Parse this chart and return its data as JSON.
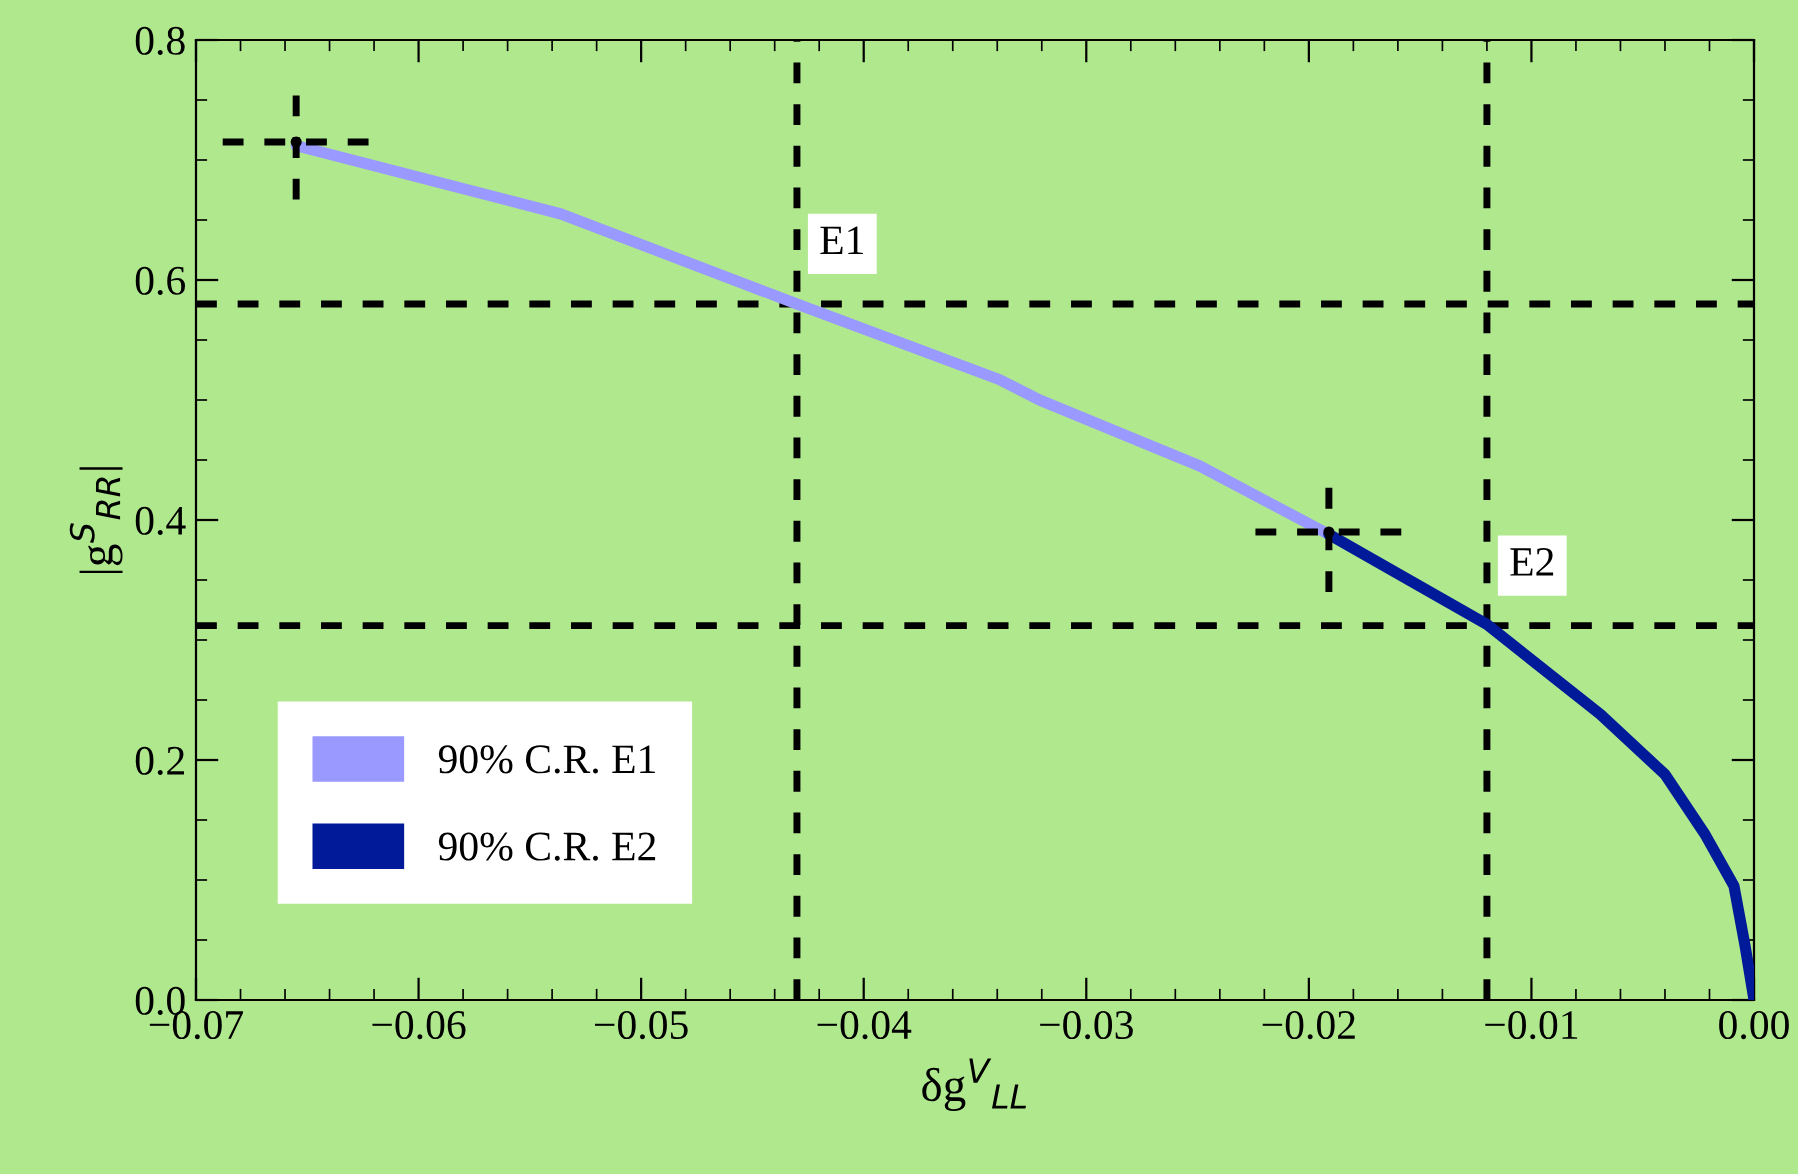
{
  "chart_data": {
    "type": "line",
    "xlabel": "δg$^{V}$$_{LL}$",
    "ylabel": "|g$^{S}$$_{RR}$|",
    "xlim": [
      -0.07,
      0.0
    ],
    "ylim": [
      0.0,
      0.8
    ],
    "xticks": [
      {
        "value": -0.07,
        "label": "−0.07"
      },
      {
        "value": -0.06,
        "label": "−0.06"
      },
      {
        "value": -0.05,
        "label": "−0.05"
      },
      {
        "value": -0.04,
        "label": "−0.04"
      },
      {
        "value": -0.03,
        "label": "−0.03"
      },
      {
        "value": -0.02,
        "label": "−0.02"
      },
      {
        "value": -0.01,
        "label": "−0.01"
      },
      {
        "value": 0.0,
        "label": "0.00"
      }
    ],
    "yticks": [
      {
        "value": 0.0,
        "label": "0.0"
      },
      {
        "value": 0.2,
        "label": "0.2"
      },
      {
        "value": 0.4,
        "label": "0.4"
      },
      {
        "value": 0.6,
        "label": "0.6"
      },
      {
        "value": 0.8,
        "label": "0.8"
      }
    ],
    "grid": false,
    "legend": "bottom left",
    "series": [
      {
        "name": "90% C.R. E1",
        "color": "#9999ff",
        "x": [
          -0.0655,
          -0.0536,
          -0.043,
          -0.0339,
          -0.0321,
          -0.0249,
          -0.0191
        ],
        "values": [
          0.712,
          0.655,
          0.58,
          0.517,
          0.5,
          0.445,
          0.388
        ]
      },
      {
        "name": "90% C.R. E2",
        "color": "#001a99",
        "x": [
          -0.0191,
          -0.012,
          -0.0069,
          -0.004,
          -0.0022,
          -0.0009,
          -0.0004,
          0.0
        ],
        "values": [
          0.388,
          0.313,
          0.238,
          0.188,
          0.138,
          0.095,
          0.045,
          0.0
        ]
      },
      {
        "type": "scatter",
        "color": "#000000",
        "marker": "circle",
        "line_style": "dashed",
        "x": [
          -0.0655,
          -0.0191
        ],
        "values": [
          0.715,
          0.39
        ],
        "errors": [
          0.048,
          0.05
        ],
        "xerrors": [
          0.0033,
          0.0033
        ]
      }
    ],
    "ref_lines": [
      {
        "axis": "x",
        "value": -0.043,
        "color": "#000000",
        "line_style": "dashed"
      },
      {
        "axis": "x",
        "value": -0.012,
        "color": "#000000",
        "line_style": "dashed"
      },
      {
        "axis": "y",
        "value": 0.58,
        "color": "#000000",
        "line_style": "dashed"
      },
      {
        "axis": "y",
        "value": 0.312,
        "color": "#000000",
        "line_style": "dashed"
      }
    ],
    "annotations": [
      {
        "text": "E1",
        "x": -0.043,
        "y": 0.58
      },
      {
        "text": "E2",
        "x": -0.012,
        "y": 0.312
      }
    ]
  }
}
